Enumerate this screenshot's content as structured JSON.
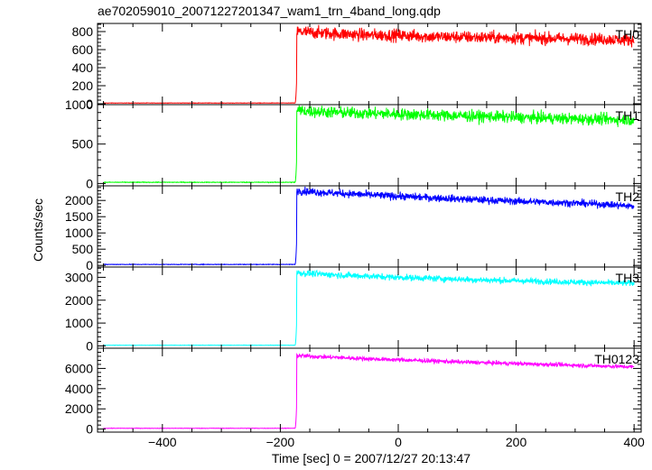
{
  "chart_data": {
    "type": "line",
    "title": "ae702059010_20071227201347_wam1_trn_4band_long.qdp",
    "xlabel": "Time [sec] 0 = 2007/12/27 20:13:47",
    "ylabel": "Counts/sec",
    "xlim": [
      -510,
      412
    ],
    "x_ticks": [
      -400,
      -200,
      0,
      200,
      400
    ],
    "x_tick_labels": [
      "−400",
      "−200",
      "0",
      "200",
      "400"
    ],
    "grid": false,
    "onset_time": -172,
    "time_range": [
      -500,
      400
    ],
    "panels": [
      {
        "name": "TH0",
        "color": "#ff0000",
        "ylim": [
          -10,
          890
        ],
        "yticks": [
          0,
          200,
          400,
          600,
          800
        ],
        "baseline": 8,
        "series": {
          "x": [
            -500,
            -175,
            -172,
            -150,
            -100,
            -50,
            0,
            50,
            100,
            150,
            200,
            250,
            300,
            350,
            400
          ],
          "y": [
            8,
            8,
            800,
            790,
            775,
            760,
            760,
            745,
            740,
            735,
            730,
            725,
            720,
            715,
            705
          ]
        }
      },
      {
        "name": "TH1",
        "color": "#00ff00",
        "ylim": [
          -30,
          1000
        ],
        "yticks": [
          0,
          500,
          1000
        ],
        "baseline": 15,
        "series": {
          "x": [
            -500,
            -175,
            -172,
            -150,
            -100,
            -50,
            0,
            50,
            100,
            150,
            200,
            250,
            300,
            350,
            400
          ],
          "y": [
            15,
            15,
            930,
            915,
            900,
            890,
            880,
            870,
            860,
            850,
            840,
            830,
            820,
            815,
            805
          ]
        }
      },
      {
        "name": "TH2",
        "color": "#0000ff",
        "ylim": [
          -50,
          2450
        ],
        "yticks": [
          0,
          500,
          1000,
          1500,
          2000
        ],
        "yticklabels": [
          "0",
          "500",
          "1000",
          "1500",
          "2000"
        ],
        "baseline": 30,
        "series": {
          "x": [
            -500,
            -175,
            -172,
            -150,
            -100,
            -50,
            0,
            50,
            100,
            150,
            200,
            250,
            300,
            350,
            400
          ],
          "y": [
            30,
            30,
            2300,
            2270,
            2220,
            2170,
            2130,
            2090,
            2050,
            2010,
            1980,
            1950,
            1920,
            1880,
            1820
          ]
        }
      },
      {
        "name": "TH3",
        "color": "#00ffff",
        "ylim": [
          -100,
          3450
        ],
        "yticks": [
          0,
          1000,
          2000,
          3000
        ],
        "baseline": 30,
        "series": {
          "x": [
            -500,
            -175,
            -172,
            -150,
            -100,
            -50,
            0,
            50,
            100,
            150,
            200,
            250,
            300,
            350,
            400
          ],
          "y": [
            30,
            30,
            3200,
            3160,
            3100,
            3050,
            3000,
            2960,
            2920,
            2880,
            2850,
            2820,
            2790,
            2760,
            2740
          ]
        }
      },
      {
        "name": "TH0123",
        "color": "#ff00ff",
        "ylim": [
          -300,
          8000
        ],
        "yticks": [
          0,
          2000,
          4000,
          6000
        ],
        "baseline": 80,
        "series": {
          "x": [
            -500,
            -175,
            -172,
            -150,
            -100,
            -50,
            0,
            50,
            100,
            150,
            200,
            250,
            300,
            350,
            400
          ],
          "y": [
            80,
            80,
            7300,
            7200,
            7080,
            6950,
            6850,
            6750,
            6650,
            6560,
            6480,
            6400,
            6320,
            6230,
            6150
          ]
        }
      }
    ]
  }
}
